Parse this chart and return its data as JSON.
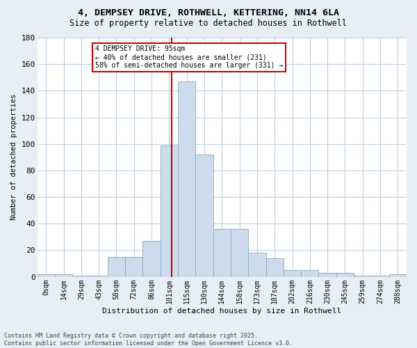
{
  "title": "4, DEMPSEY DRIVE, ROTHWELL, KETTERING, NN14 6LA",
  "subtitle": "Size of property relative to detached houses in Rothwell",
  "xlabel": "Distribution of detached houses by size in Rothwell",
  "ylabel": "Number of detached properties",
  "bin_labels": [
    "0sqm",
    "14sqm",
    "29sqm",
    "43sqm",
    "58sqm",
    "72sqm",
    "86sqm",
    "101sqm",
    "115sqm",
    "130sqm",
    "144sqm",
    "158sqm",
    "173sqm",
    "187sqm",
    "202sqm",
    "216sqm",
    "230sqm",
    "245sqm",
    "259sqm",
    "274sqm",
    "288sqm"
  ],
  "bar_heights": [
    2,
    2,
    1,
    1,
    15,
    15,
    27,
    99,
    147,
    92,
    36,
    36,
    18,
    14,
    5,
    5,
    3,
    3,
    1,
    1,
    2
  ],
  "bar_color": "#ccdcec",
  "bar_edge_color": "#8aaabf",
  "vline_color": "#cc0000",
  "vline_pos": 7.15,
  "annotation_text": "4 DEMPSEY DRIVE: 95sqm\n← 40% of detached houses are smaller (231)\n58% of semi-detached houses are larger (331) →",
  "annotation_box_color": "#ffffff",
  "annotation_box_edge": "#cc0000",
  "ylim": [
    0,
    180
  ],
  "yticks": [
    0,
    20,
    40,
    60,
    80,
    100,
    120,
    140,
    160,
    180
  ],
  "footer_line1": "Contains HM Land Registry data © Crown copyright and database right 2025.",
  "footer_line2": "Contains public sector information licensed under the Open Government Licence v3.0.",
  "bg_color": "#e8eef5",
  "plot_bg_color": "#ffffff",
  "grid_color": "#c0cfde"
}
